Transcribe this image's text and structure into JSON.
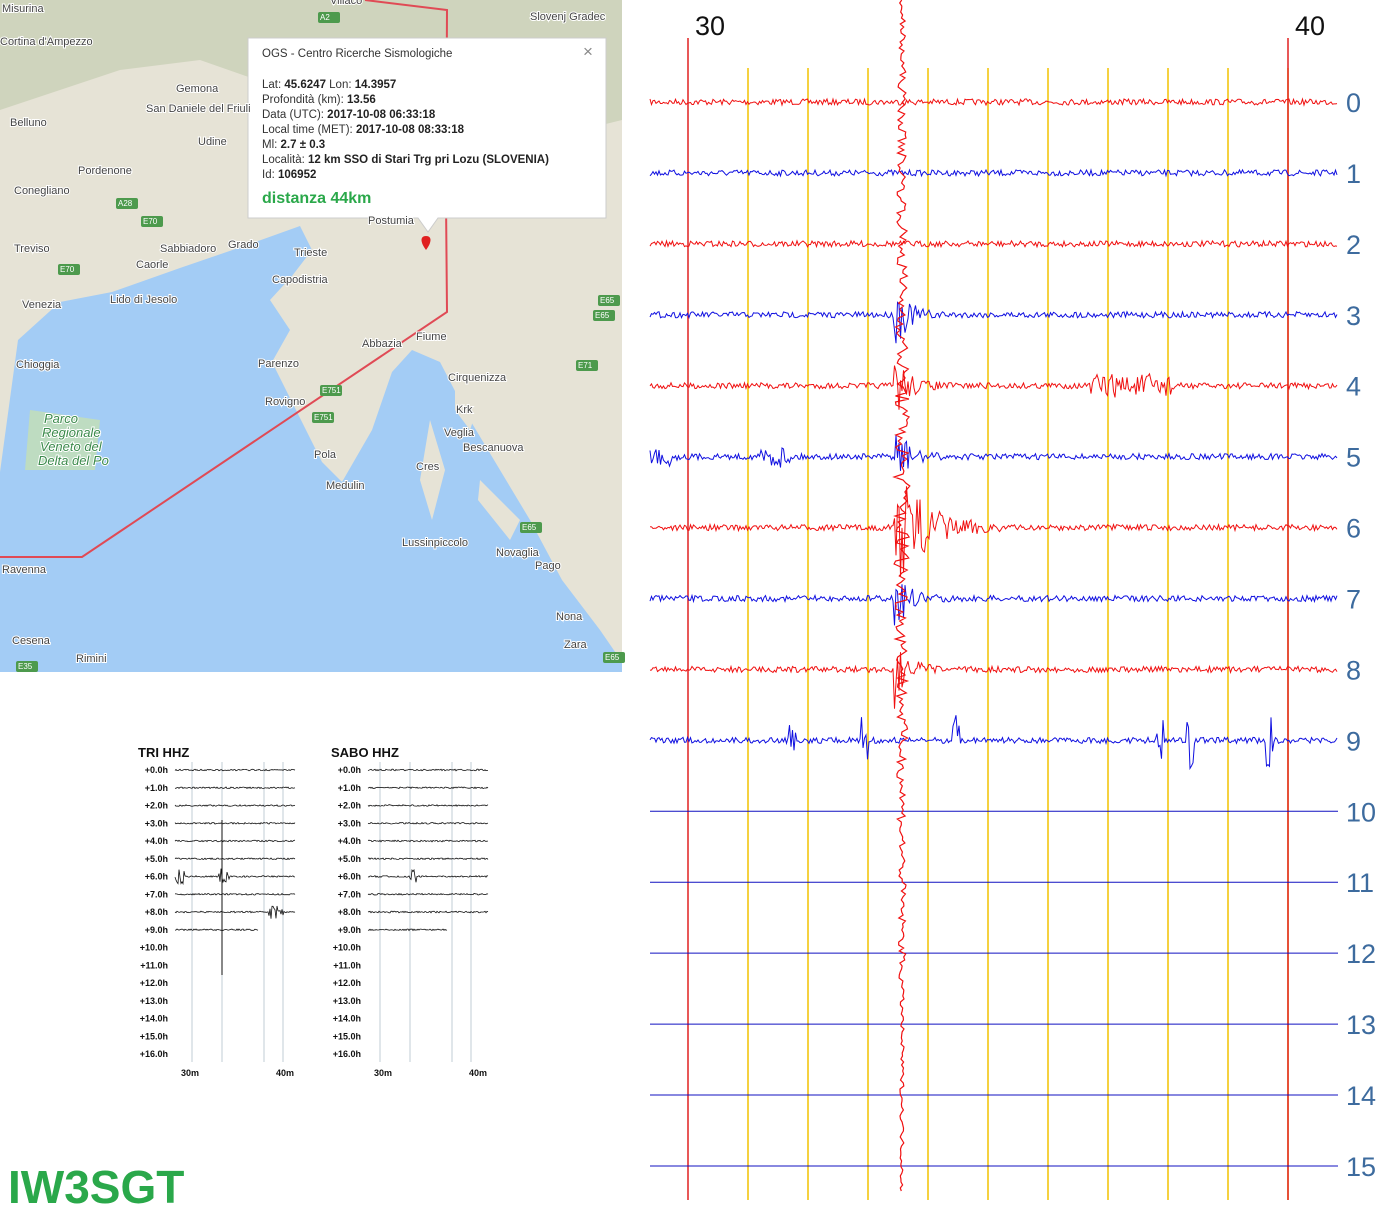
{
  "map": {
    "labels": [
      "Misurina",
      "Cortina d'Ampezzo",
      "Villaco",
      "Slovenj Gradec",
      "A2",
      "Gemona",
      "San Daniele del Friuli",
      "Belluno",
      "Udine",
      "Pordenone",
      "Conegliano",
      "A28",
      "E70",
      "Treviso",
      "Sabbiadoro",
      "Grado",
      "Caorle",
      "E70",
      "Venezia",
      "Lido di Jesolo",
      "Chioggia",
      "Trieste",
      "Capodistria",
      "Postumia",
      "Fiume",
      "Abbazia",
      "E65",
      "Parenzo",
      "E751",
      "Rovigno",
      "E751",
      "Cirquenizza",
      "E71",
      "Krk",
      "Veglia",
      "Bescanuova",
      "E65",
      "Pola",
      "Medulin",
      "Cres",
      "Parco Regionale Veneto del Delta del Po",
      "E65",
      "Lussinpiccolo",
      "Novaglia",
      "Pago",
      "Ravenna",
      "Nona",
      "Zara",
      "Cesena",
      "Rimini",
      "E35",
      "E65"
    ],
    "popup": {
      "title": "OGS - Centro Ricerche Sismologiche",
      "close": "×",
      "lines": [
        [
          [
            "Lat:",
            "45.6247"
          ],
          [
            "Lon:",
            "14.3957"
          ]
        ],
        [
          [
            "Profondità (km):",
            "13.56"
          ]
        ],
        [
          [
            "Data (UTC):",
            "2017-10-08 06:33:18"
          ]
        ],
        [
          [
            "Local time (MET):",
            "2017-10-08 08:33:18"
          ]
        ],
        [
          [
            "Ml:",
            "2.7 ± 0.3"
          ]
        ],
        [
          [
            "Località:",
            "12 km SSO di Stari Trg pri Lozu (SLOVENIA)"
          ]
        ],
        [
          [
            "Id:",
            "106952"
          ]
        ]
      ],
      "distance": "distanza 44km"
    }
  },
  "seismogram": {
    "minute_labels": [
      "30",
      "40"
    ],
    "row_labels": [
      "0",
      "1",
      "2",
      "3",
      "4",
      "5",
      "6",
      "7",
      "8",
      "9",
      "10",
      "11",
      "12",
      "13",
      "14",
      "15"
    ]
  },
  "helicorders": [
    {
      "title": "TRI HHZ",
      "x_labels": [
        "30m",
        "40m"
      ]
    },
    {
      "title": "SABO HHZ",
      "x_labels": [
        "30m",
        "40m"
      ]
    }
  ],
  "helicorder_rows": [
    "+0.0h",
    "+1.0h",
    "+2.0h",
    "+3.0h",
    "+4.0h",
    "+5.0h",
    "+6.0h",
    "+7.0h",
    "+8.0h",
    "+9.0h",
    "+10.0h",
    "+11.0h",
    "+12.0h",
    "+13.0h",
    "+14.0h",
    "+15.0h",
    "+16.0h"
  ],
  "footer": "IW3SGT"
}
